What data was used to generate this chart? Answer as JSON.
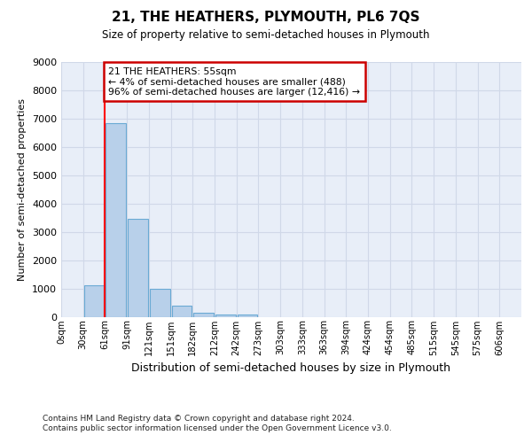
{
  "title": "21, THE HEATHERS, PLYMOUTH, PL6 7QS",
  "subtitle": "Size of property relative to semi-detached houses in Plymouth",
  "xlabel": "Distribution of semi-detached houses by size in Plymouth",
  "ylabel": "Number of semi-detached properties",
  "bar_categories": [
    "0sqm",
    "30sqm",
    "61sqm",
    "91sqm",
    "121sqm",
    "151sqm",
    "182sqm",
    "212sqm",
    "242sqm",
    "273sqm",
    "303sqm",
    "333sqm",
    "363sqm",
    "394sqm",
    "424sqm",
    "454sqm",
    "485sqm",
    "515sqm",
    "545sqm",
    "575sqm",
    "606sqm"
  ],
  "bar_values": [
    0,
    1100,
    6850,
    3450,
    1000,
    400,
    150,
    90,
    80,
    0,
    0,
    0,
    0,
    0,
    0,
    0,
    0,
    0,
    0,
    0,
    0
  ],
  "bar_color": "#b8d0ea",
  "bar_edgecolor": "#6aaad4",
  "vline_color": "red",
  "vline_x_bin": 1.5,
  "annotation_text": "21 THE HEATHERS: 55sqm\n← 4% of semi-detached houses are smaller (488)\n96% of semi-detached houses are larger (12,416) →",
  "annotation_box_color": "white",
  "annotation_box_edgecolor": "#cc0000",
  "ylim": [
    0,
    9000
  ],
  "yticks": [
    0,
    1000,
    2000,
    3000,
    4000,
    5000,
    6000,
    7000,
    8000,
    9000
  ],
  "grid_color": "#d0d8e8",
  "background_color": "#e8eef8",
  "footer_line1": "Contains HM Land Registry data © Crown copyright and database right 2024.",
  "footer_line2": "Contains public sector information licensed under the Open Government Licence v3.0."
}
